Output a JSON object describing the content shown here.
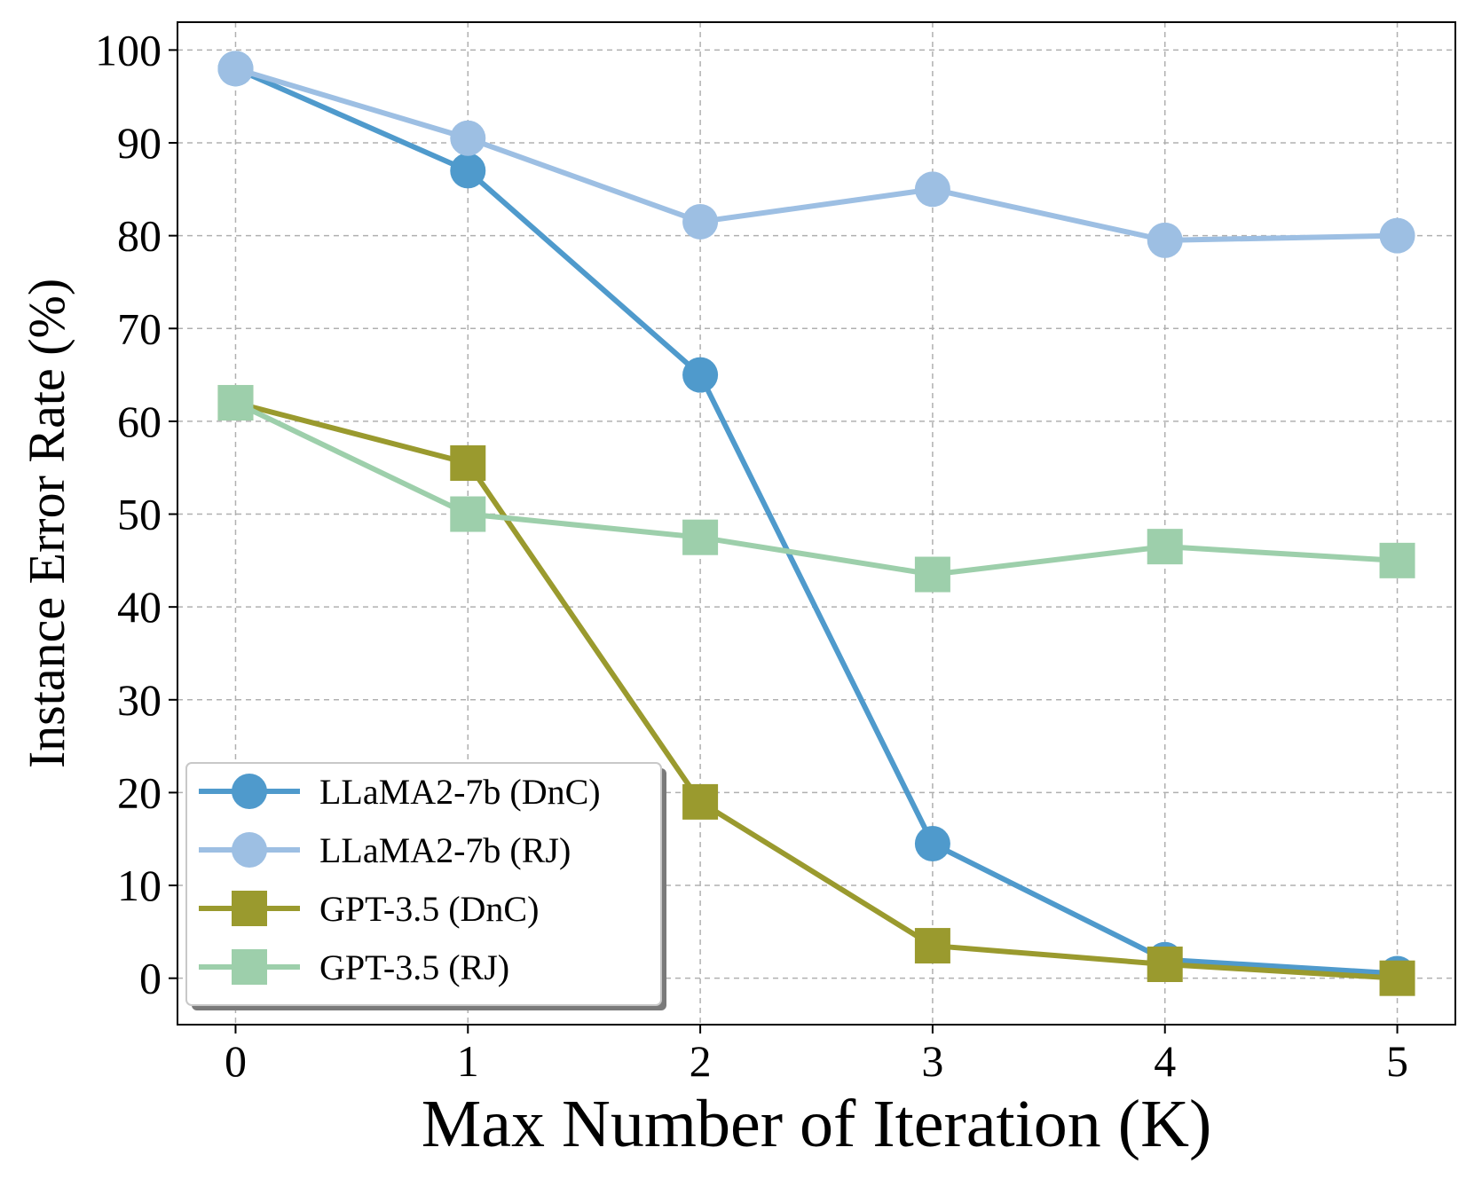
{
  "chart_data": {
    "type": "line",
    "title": "",
    "xlabel": "Max Number of Iteration (K)",
    "ylabel": "Instance Error Rate (%)",
    "x": [
      0,
      1,
      2,
      3,
      4,
      5
    ],
    "xlim": [
      -0.25,
      5.25
    ],
    "ylim": [
      -5,
      103
    ],
    "xticks": [
      0,
      1,
      2,
      3,
      4,
      5
    ],
    "yticks": [
      0,
      10,
      20,
      30,
      40,
      50,
      60,
      70,
      80,
      90,
      100
    ],
    "grid": true,
    "legend_position": "lower-left",
    "series": [
      {
        "name": "LLaMA2-7b (DnC)",
        "values": [
          98,
          87,
          65,
          14.5,
          2,
          0.5
        ],
        "color": "#4f9acc",
        "marker": "circle"
      },
      {
        "name": "LLaMA2-7b (RJ)",
        "values": [
          98,
          90.5,
          81.5,
          85,
          79.5,
          80
        ],
        "color": "#9dbfe3",
        "marker": "circle"
      },
      {
        "name": "GPT-3.5 (DnC)",
        "values": [
          62,
          55.5,
          19,
          3.5,
          1.5,
          0
        ],
        "color": "#9a9a2e",
        "marker": "square"
      },
      {
        "name": "GPT-3.5 (RJ)",
        "values": [
          62,
          50,
          47.5,
          43.5,
          46.5,
          45
        ],
        "color": "#9dcfab",
        "marker": "square"
      }
    ]
  }
}
